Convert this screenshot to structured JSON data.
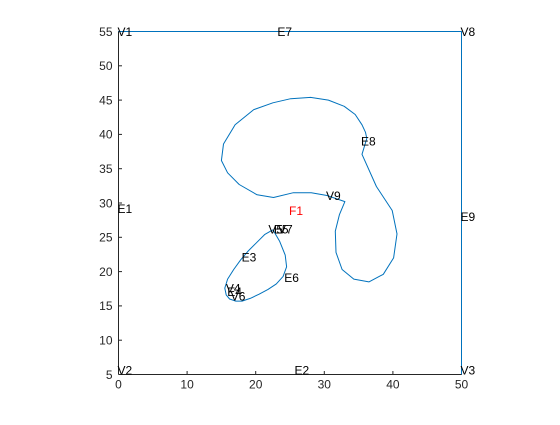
{
  "colors": {
    "background": "#ffffff",
    "axis": "#262626",
    "curve": "#0072bd",
    "label": "#000000",
    "face_label": "#ff0000"
  },
  "chart_data": {
    "type": "line",
    "title": "",
    "xlabel": "",
    "ylabel": "",
    "xlim": [
      0,
      50
    ],
    "ylim": [
      5,
      55
    ],
    "grid": false,
    "x_ticks": [
      0,
      10,
      20,
      30,
      40,
      50
    ],
    "x_tick_labels": [
      "0",
      "10",
      "20",
      "30",
      "40",
      "50"
    ],
    "y_ticks": [
      5,
      10,
      15,
      20,
      25,
      30,
      35,
      40,
      45,
      50,
      55
    ],
    "y_tick_labels": [
      "5",
      "10",
      "15",
      "20",
      "25",
      "30",
      "35",
      "40",
      "45",
      "50",
      "55"
    ],
    "series": [
      {
        "x": [
          0,
          0,
          50,
          50,
          0
        ],
        "y": [
          5,
          55,
          55,
          5,
          5
        ]
      },
      {
        "x": [
          30.4,
          33.0,
          32.2,
          31.6,
          31.7,
          32.6,
          34.3,
          36.5,
          38.6,
          40.1,
          40.6,
          39.9,
          37.6,
          35.5,
          36.2,
          36.0,
          35.5,
          34.5,
          32.9,
          30.6,
          28.0,
          25.1,
          22.5,
          19.7,
          17.0,
          15.3,
          15.0,
          15.9,
          17.6,
          20.2,
          22.6,
          25.5,
          28.1,
          30.4
        ],
        "y": [
          31.1,
          30.2,
          28.3,
          25.9,
          22.8,
          20.3,
          18.9,
          18.5,
          19.6,
          22.0,
          25.5,
          28.9,
          32.4,
          37.1,
          39.4,
          40.3,
          41.4,
          42.9,
          44.1,
          45.0,
          45.4,
          45.2,
          44.6,
          43.6,
          41.4,
          38.6,
          36.2,
          34.4,
          32.7,
          31.2,
          30.8,
          31.5,
          31.5,
          31.1
        ]
      },
      {
        "x": [
          22.5,
          21.3,
          20.1,
          18.9,
          17.8,
          16.8,
          15.9,
          15.5,
          15.7,
          16.2,
          17.1,
          18.0,
          19.2,
          20.5,
          21.8,
          23.0,
          24.0,
          24.5,
          24.3,
          23.5,
          22.5
        ],
        "y": [
          26.1,
          25.4,
          24.2,
          23.0,
          21.7,
          20.3,
          18.9,
          17.6,
          16.6,
          16.0,
          15.7,
          15.7,
          16.1,
          16.7,
          17.4,
          18.2,
          19.3,
          20.7,
          22.4,
          24.4,
          26.1
        ]
      }
    ],
    "annotations": [
      {
        "text": "V1",
        "x": 0,
        "y": 55,
        "color": "#000000"
      },
      {
        "text": "E7",
        "x": 23.3,
        "y": 55,
        "color": "#000000"
      },
      {
        "text": "V8",
        "x": 50,
        "y": 55,
        "color": "#000000"
      },
      {
        "text": "E8",
        "x": 35.5,
        "y": 39.0,
        "color": "#000000"
      },
      {
        "text": "V9",
        "x": 30.4,
        "y": 31.1,
        "color": "#000000"
      },
      {
        "text": "E1",
        "x": 0,
        "y": 29.2,
        "color": "#000000"
      },
      {
        "text": "F1",
        "x": 25,
        "y": 28.9,
        "color": "#ff0000"
      },
      {
        "text": "E9",
        "x": 50,
        "y": 28.0,
        "color": "#000000"
      },
      {
        "text": "V5",
        "x": 22.0,
        "y": 26.2,
        "color": "#000000"
      },
      {
        "text": "E5",
        "x": 22.8,
        "y": 26.2,
        "color": "#000000"
      },
      {
        "text": "V7",
        "x": 23.4,
        "y": 26.2,
        "color": "#000000"
      },
      {
        "text": "E3",
        "x": 18.1,
        "y": 22.1,
        "color": "#000000"
      },
      {
        "text": "E6",
        "x": 24.3,
        "y": 19.1,
        "color": "#000000"
      },
      {
        "text": "V4",
        "x": 15.8,
        "y": 17.6,
        "color": "#000000"
      },
      {
        "text": "E4",
        "x": 16.0,
        "y": 17.1,
        "color": "#000000"
      },
      {
        "text": "V6",
        "x": 16.5,
        "y": 16.4,
        "color": "#000000"
      },
      {
        "text": "V2",
        "x": 0,
        "y": 5.6,
        "color": "#000000"
      },
      {
        "text": "E2",
        "x": 25.8,
        "y": 5.6,
        "color": "#000000"
      },
      {
        "text": "V3",
        "x": 50,
        "y": 5.6,
        "color": "#000000"
      }
    ]
  }
}
